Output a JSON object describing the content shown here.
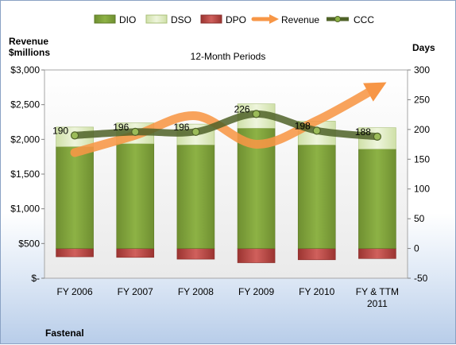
{
  "chart_data": {
    "type": "bar",
    "title": "12-Month Periods",
    "company": "Fastenal",
    "categories": [
      "FY 2006",
      "FY 2007",
      "FY 2008",
      "FY 2009",
      "FY 2010",
      "FY & TTM|2011"
    ],
    "y_left": {
      "label_line1": "Revenue",
      "label_line2": "$millions",
      "min": 0,
      "max": 3000,
      "step": 500,
      "tick_labels": [
        "$-",
        "$500",
        "$1,000",
        "$1,500",
        "$2,000",
        "$2,500",
        "$3,000"
      ]
    },
    "y_right": {
      "label": "Days",
      "min": -50,
      "max": 300,
      "step": 50,
      "tick_labels": [
        "-50",
        "0",
        "50",
        "100",
        "150",
        "200",
        "250",
        "300"
      ]
    },
    "legend": [
      "DIO",
      "DSO",
      "DPO",
      "Revenue",
      "CCC"
    ],
    "legend_position": "top",
    "series": [
      {
        "name": "DIO",
        "axis": "right",
        "values": [
          171,
          176,
          174,
          202,
          174,
          167
        ],
        "color": "#7a9b3a"
      },
      {
        "name": "DSO",
        "axis": "right",
        "values": [
          33,
          35,
          35,
          41,
          40,
          36
        ],
        "color": "#dbe8b8"
      },
      {
        "name": "DPO",
        "axis": "right",
        "values": [
          -14,
          -15,
          -18,
          -24,
          -19,
          -17
        ],
        "color": "#c0504d"
      },
      {
        "name": "CCC",
        "axis": "right",
        "values": [
          190,
          196,
          196,
          226,
          198,
          188
        ],
        "labels": [
          "190",
          "196",
          "196",
          "226",
          "198",
          "188"
        ],
        "color": "#4f6228"
      },
      {
        "name": "Revenue",
        "axis": "left",
        "values": [
          1810,
          2060,
          2340,
          1930,
          2270,
          2750
        ],
        "color": "#f79646"
      }
    ],
    "grid": false
  }
}
